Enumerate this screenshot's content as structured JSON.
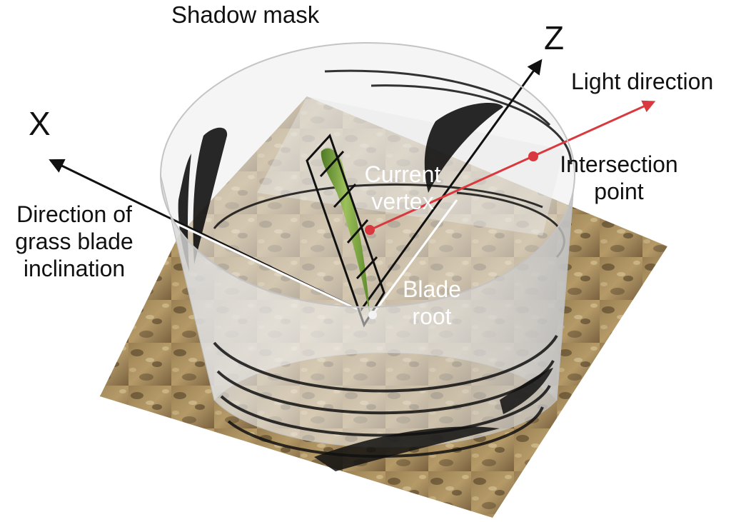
{
  "labels": {
    "shadow_mask": "Shadow mask",
    "axis_z": "Z",
    "axis_x": "X",
    "light_direction": "Light direction",
    "intersection_point": [
      "Intersection",
      "point"
    ],
    "current_vertex": [
      "Current",
      "vertex"
    ],
    "blade_root": [
      "Blade",
      "root"
    ],
    "inclination": [
      "Direction of",
      "grass blade",
      "inclination"
    ]
  },
  "colors": {
    "light_ray": "#d9383e",
    "cylinder": "#c9c9c9",
    "blade": "#6f9a3b",
    "ground": "#a88a5a",
    "axis": "#111111"
  }
}
